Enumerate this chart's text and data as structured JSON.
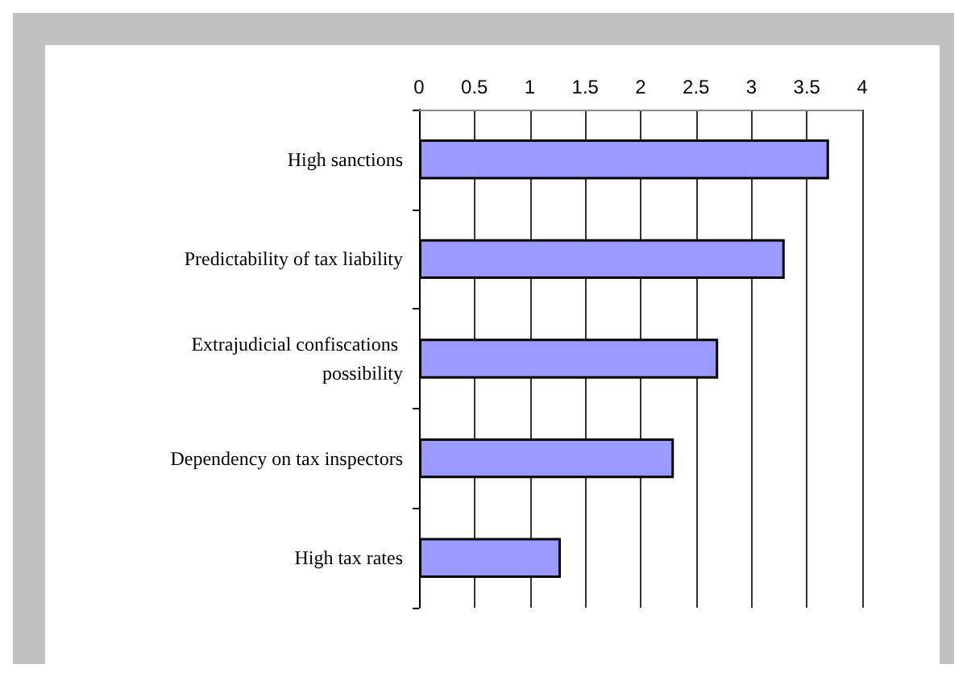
{
  "chart_data": {
    "type": "bar",
    "orientation": "horizontal",
    "categories": [
      "High sanctions",
      "Predictability of tax liability",
      "Extrajudicial confiscations possibility",
      "Dependency on tax inspectors",
      "High tax rates"
    ],
    "values": [
      3.7,
      3.3,
      2.7,
      2.3,
      1.28
    ],
    "color": "#9999ff",
    "xlim": [
      0,
      4
    ],
    "xticks": [
      0,
      0.5,
      1,
      1.5,
      2,
      2.5,
      3,
      3.5,
      4
    ],
    "grid": "x"
  }
}
